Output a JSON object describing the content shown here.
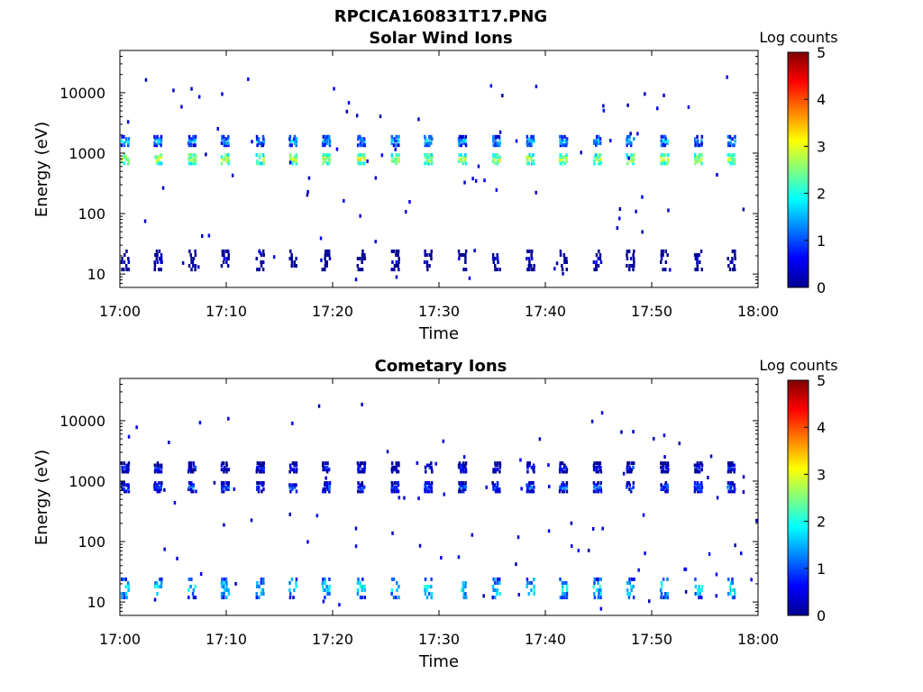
{
  "figure_title": "RPCICA160831T17.PNG",
  "chart_data": [
    {
      "type": "heatmap",
      "title": "Solar Wind Ions",
      "xlabel": "Time",
      "ylabel": "Energy (eV)",
      "x_ticks": [
        "17:00",
        "17:10",
        "17:20",
        "17:30",
        "17:40",
        "17:50",
        "18:00"
      ],
      "x_range_min": [
        0,
        60
      ],
      "y_ticks": [
        "10",
        "100",
        "1000",
        "10000"
      ],
      "y_scale": "log",
      "ylim": [
        6,
        50000
      ],
      "colorbar": {
        "label": "Log counts",
        "ticks": [
          "0",
          "1",
          "2",
          "3",
          "4",
          "5"
        ],
        "range": [
          0,
          5
        ],
        "colormap": "jet"
      },
      "bursts_min": [
        0.4,
        3.5,
        6.7,
        9.8,
        13.1,
        16.2,
        19.3,
        22.6,
        25.8,
        28.9,
        32.1,
        35.3,
        38.5,
        41.6,
        44.8,
        47.9,
        51.1,
        54.3,
        57.4
      ],
      "peaks": [
        {
          "energy_ev": 850,
          "log_counts": 2.8
        },
        {
          "energy_ev": 1700,
          "log_counts": 1.5
        },
        {
          "energy_ev": 18,
          "log_counts": 0.3
        }
      ]
    },
    {
      "type": "heatmap",
      "title": "Cometary Ions",
      "xlabel": "Time",
      "ylabel": "Energy (eV)",
      "x_ticks": [
        "17:00",
        "17:10",
        "17:20",
        "17:30",
        "17:40",
        "17:50",
        "18:00"
      ],
      "x_range_min": [
        0,
        60
      ],
      "y_ticks": [
        "10",
        "100",
        "1000",
        "10000"
      ],
      "y_scale": "log",
      "ylim": [
        6,
        50000
      ],
      "colorbar": {
        "label": "Log counts",
        "ticks": [
          "0",
          "1",
          "2",
          "3",
          "4",
          "5"
        ],
        "range": [
          0,
          5
        ],
        "colormap": "jet"
      },
      "bursts_min": [
        0.4,
        3.5,
        6.7,
        9.8,
        13.1,
        16.2,
        19.3,
        22.6,
        25.8,
        28.9,
        32.1,
        35.3,
        38.5,
        41.6,
        44.8,
        47.9,
        51.1,
        54.3,
        57.4
      ],
      "peaks": [
        {
          "energy_ev": 850,
          "log_counts": 1.0
        },
        {
          "energy_ev": 1800,
          "log_counts": 0.6
        },
        {
          "energy_ev": 18,
          "log_counts": 1.9
        }
      ]
    }
  ]
}
